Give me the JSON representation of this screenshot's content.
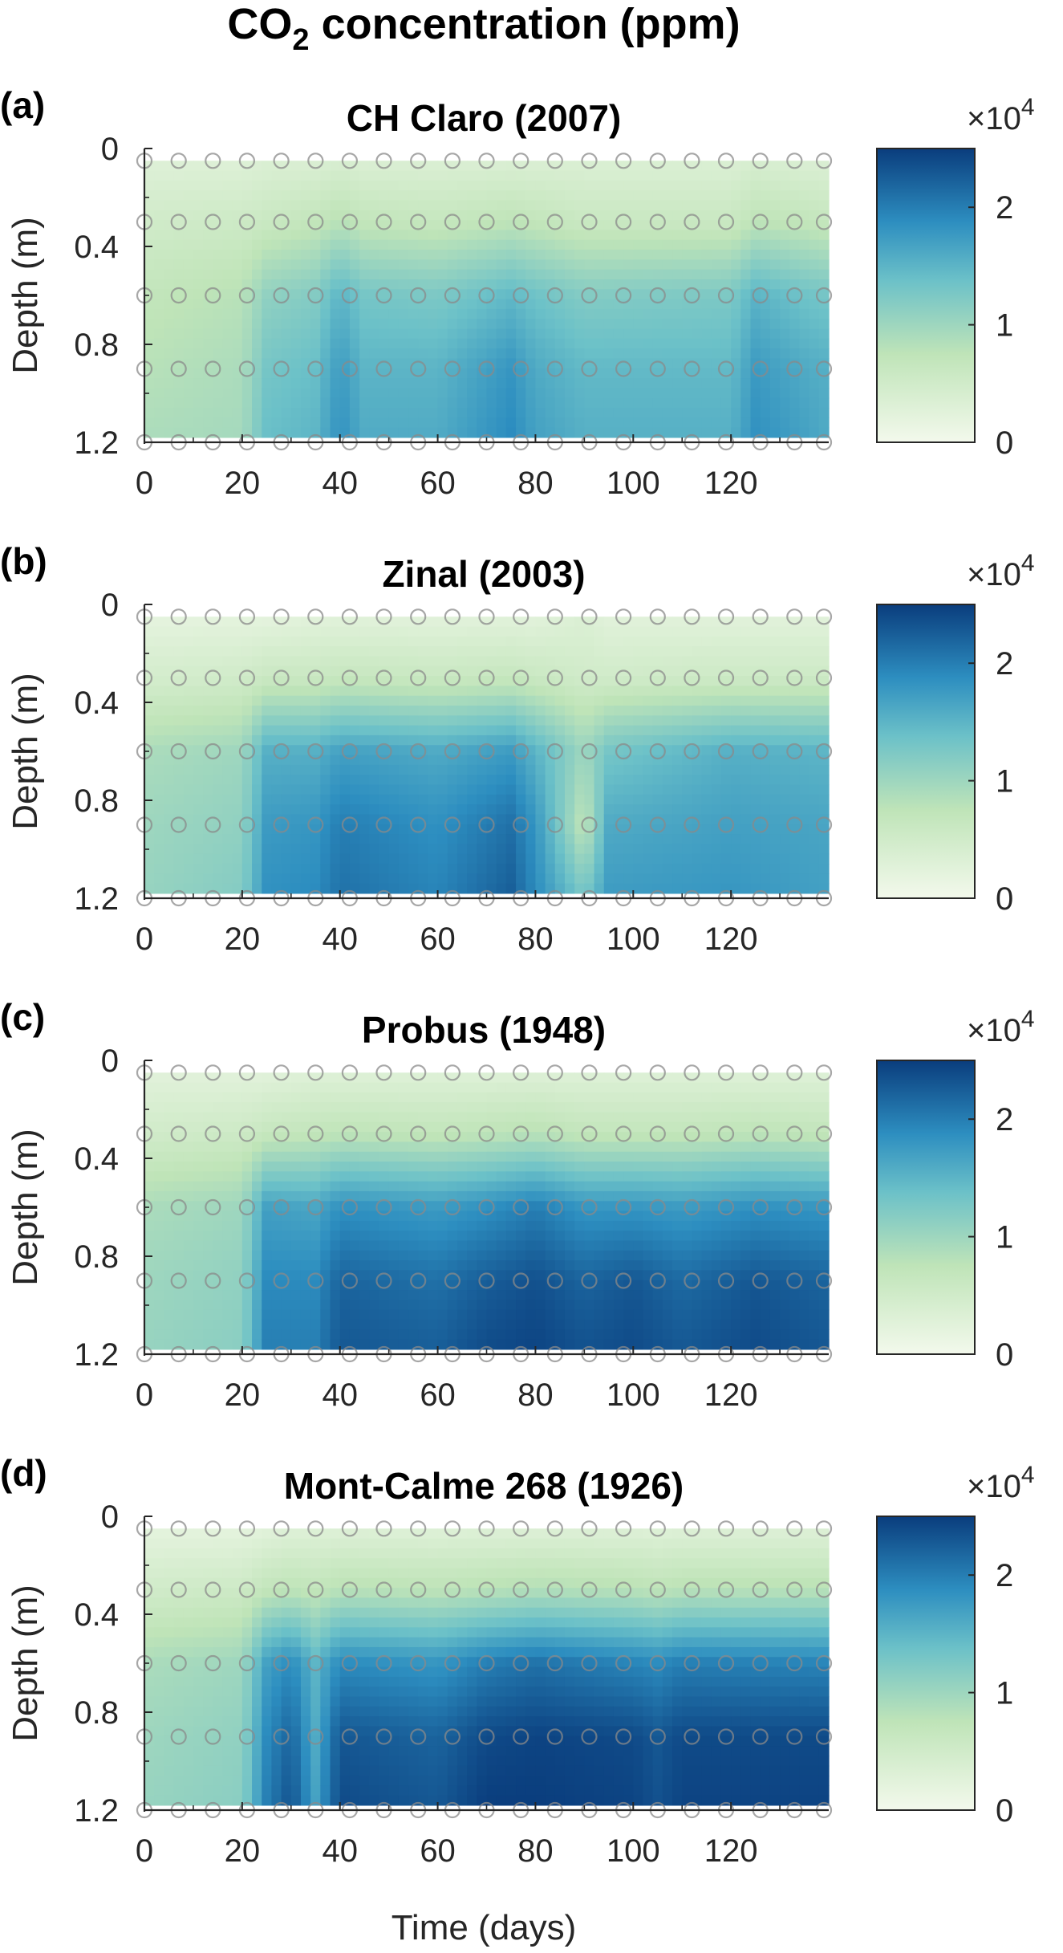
{
  "figure": {
    "title_main": "CO",
    "title_sub": "2",
    "title_rest": " concentration (ppm)",
    "x_label": "Time (days)",
    "y_label": "Depth (m)",
    "colorbar_multiplier_base": "×10",
    "colorbar_multiplier_exp": "4",
    "colors": {
      "low": "#f3f9ec",
      "mid_low": "#bfe4b8",
      "mid": "#6cc1c8",
      "mid_high": "#2d8ec0",
      "high": "#0a3d7d",
      "marker": "#8a8a8a"
    }
  },
  "chart_data": [
    {
      "type": "heatmap",
      "panel_label": "(a)",
      "title": "CH Claro (2007)",
      "xlabel": "",
      "ylabel": "Depth (m)",
      "xlim": [
        0,
        140
      ],
      "ylim": [
        0,
        1.2
      ],
      "x_ticks": [
        "0",
        "20",
        "40",
        "60",
        "80",
        "100",
        "120"
      ],
      "y_ticks": [
        "0",
        "0.4",
        "0.8",
        "1.2"
      ],
      "colorbar_ticks": [
        "0",
        "1",
        "2"
      ],
      "colorbar_range": [
        0,
        2.5
      ],
      "sensor_depths": [
        0.05,
        0.3,
        0.6,
        0.9,
        1.2
      ],
      "sensor_times": [
        0,
        7,
        14,
        21,
        28,
        35,
        42,
        49,
        56,
        63,
        70,
        77,
        84,
        91,
        98,
        105,
        112,
        119,
        126,
        133,
        140
      ],
      "times": [
        0,
        20,
        25,
        35,
        40,
        45,
        60,
        75,
        80,
        90,
        120,
        125,
        135,
        140
      ],
      "depths": [
        0.05,
        0.3,
        0.6,
        0.9,
        1.2
      ],
      "values": [
        [
          0.3,
          0.3,
          0.35,
          0.35,
          0.4,
          0.35,
          0.35,
          0.35,
          0.35,
          0.35,
          0.35,
          0.4,
          0.35,
          0.35
        ],
        [
          0.5,
          0.55,
          0.6,
          0.7,
          0.8,
          0.7,
          0.65,
          0.75,
          0.7,
          0.6,
          0.6,
          0.75,
          0.7,
          0.65
        ],
        [
          0.7,
          0.8,
          1.1,
          1.2,
          1.5,
          1.3,
          1.25,
          1.45,
          1.35,
          1.2,
          1.25,
          1.5,
          1.35,
          1.3
        ],
        [
          0.8,
          0.9,
          1.3,
          1.4,
          1.75,
          1.5,
          1.5,
          1.8,
          1.6,
          1.45,
          1.45,
          1.75,
          1.6,
          1.55
        ],
        [
          0.9,
          0.95,
          1.4,
          1.5,
          1.85,
          1.6,
          1.6,
          1.9,
          1.7,
          1.55,
          1.55,
          1.85,
          1.7,
          1.6
        ]
      ]
    },
    {
      "type": "heatmap",
      "panel_label": "(b)",
      "title": "Zinal (2003)",
      "xlabel": "",
      "ylabel": "Depth (m)",
      "xlim": [
        0,
        140
      ],
      "ylim": [
        0,
        1.2
      ],
      "x_ticks": [
        "0",
        "20",
        "40",
        "60",
        "80",
        "100",
        "120"
      ],
      "y_ticks": [
        "0",
        "0.4",
        "0.8",
        "1.2"
      ],
      "colorbar_ticks": [
        "0",
        "1",
        "2"
      ],
      "colorbar_range": [
        0,
        2.5
      ],
      "sensor_depths": [
        0.05,
        0.3,
        0.6,
        0.9,
        1.2
      ],
      "sensor_times": [
        0,
        7,
        14,
        21,
        28,
        35,
        42,
        49,
        56,
        63,
        70,
        77,
        84,
        91,
        98,
        105,
        112,
        119,
        126,
        133,
        140
      ],
      "times": [
        0,
        20,
        25,
        35,
        40,
        60,
        75,
        80,
        90,
        95,
        120,
        140
      ],
      "depths": [
        0.05,
        0.3,
        0.6,
        0.9,
        1.2
      ],
      "values": [
        [
          0.2,
          0.2,
          0.2,
          0.25,
          0.25,
          0.25,
          0.25,
          0.25,
          0.35,
          0.25,
          0.25,
          0.25
        ],
        [
          0.45,
          0.5,
          0.6,
          0.6,
          0.65,
          0.6,
          0.65,
          0.6,
          0.5,
          0.5,
          0.55,
          0.55
        ],
        [
          0.9,
          1.0,
          1.55,
          1.55,
          1.7,
          1.6,
          1.75,
          1.5,
          1.0,
          1.3,
          1.55,
          1.5
        ],
        [
          1.0,
          1.1,
          1.75,
          1.8,
          2.0,
          1.85,
          2.1,
          1.8,
          0.7,
          1.6,
          1.7,
          1.65
        ],
        [
          1.05,
          1.2,
          1.85,
          1.9,
          2.1,
          1.95,
          2.25,
          1.9,
          1.3,
          1.75,
          1.8,
          1.7
        ]
      ]
    },
    {
      "type": "heatmap",
      "panel_label": "(c)",
      "title": "Probus (1948)",
      "xlabel": "",
      "ylabel": "Depth (m)",
      "xlim": [
        0,
        140
      ],
      "ylim": [
        0,
        1.2
      ],
      "x_ticks": [
        "0",
        "20",
        "40",
        "60",
        "80",
        "100",
        "120"
      ],
      "y_ticks": [
        "0",
        "0.4",
        "0.8",
        "1.2"
      ],
      "colorbar_ticks": [
        "0",
        "1",
        "2"
      ],
      "colorbar_range": [
        0,
        2.5
      ],
      "sensor_depths": [
        0.05,
        0.3,
        0.6,
        0.9,
        1.2
      ],
      "sensor_times": [
        0,
        7,
        14,
        21,
        28,
        35,
        42,
        49,
        56,
        63,
        70,
        77,
        84,
        91,
        98,
        105,
        112,
        119,
        126,
        133,
        140
      ],
      "times": [
        0,
        20,
        25,
        35,
        40,
        60,
        70,
        80,
        90,
        100,
        110,
        125,
        140
      ],
      "depths": [
        0.05,
        0.3,
        0.6,
        0.9,
        1.2
      ],
      "values": [
        [
          0.25,
          0.25,
          0.25,
          0.3,
          0.3,
          0.3,
          0.3,
          0.3,
          0.3,
          0.3,
          0.3,
          0.3,
          0.3
        ],
        [
          0.5,
          0.55,
          0.65,
          0.7,
          0.75,
          0.7,
          0.75,
          0.8,
          0.7,
          0.7,
          0.7,
          0.75,
          0.7
        ],
        [
          0.9,
          1.0,
          1.7,
          1.65,
          1.85,
          1.75,
          1.85,
          2.0,
          1.8,
          1.8,
          1.75,
          1.85,
          1.8
        ],
        [
          1.0,
          1.1,
          1.9,
          1.9,
          2.2,
          2.1,
          2.25,
          2.35,
          2.2,
          2.3,
          2.15,
          2.3,
          2.2
        ],
        [
          1.05,
          1.15,
          2.0,
          2.0,
          2.3,
          2.25,
          2.4,
          2.45,
          2.35,
          2.4,
          2.3,
          2.4,
          2.3
        ]
      ]
    },
    {
      "type": "heatmap",
      "panel_label": "(d)",
      "title": "Mont-Calme 268 (1926)",
      "xlabel": "Time (days)",
      "ylabel": "Depth (m)",
      "xlim": [
        0,
        140
      ],
      "ylim": [
        0,
        1.2
      ],
      "x_ticks": [
        "0",
        "20",
        "40",
        "60",
        "80",
        "100",
        "120"
      ],
      "y_ticks": [
        "0",
        "0.4",
        "0.8",
        "1.2"
      ],
      "colorbar_ticks": [
        "0",
        "1",
        "2"
      ],
      "colorbar_range": [
        0,
        2.5
      ],
      "sensor_depths": [
        0.05,
        0.3,
        0.6,
        0.9,
        1.2
      ],
      "sensor_times": [
        0,
        7,
        14,
        21,
        28,
        35,
        42,
        49,
        56,
        63,
        70,
        77,
        84,
        91,
        98,
        105,
        112,
        119,
        126,
        133,
        140
      ],
      "times": [
        0,
        20,
        25,
        30,
        35,
        40,
        60,
        70,
        80,
        100,
        105,
        110,
        140
      ],
      "depths": [
        0.05,
        0.3,
        0.6,
        0.9,
        1.2
      ],
      "values": [
        [
          0.2,
          0.2,
          0.25,
          0.3,
          0.3,
          0.3,
          0.3,
          0.3,
          0.3,
          0.3,
          0.3,
          0.3,
          0.3
        ],
        [
          0.5,
          0.55,
          0.7,
          0.75,
          0.7,
          0.8,
          0.75,
          0.8,
          0.85,
          0.8,
          0.75,
          0.8,
          0.8
        ],
        [
          0.9,
          1.0,
          1.7,
          1.9,
          1.5,
          1.9,
          1.8,
          2.0,
          2.1,
          1.95,
          1.9,
          2.0,
          1.95
        ],
        [
          1.0,
          1.1,
          1.9,
          2.2,
          1.6,
          2.3,
          2.2,
          2.4,
          2.45,
          2.4,
          2.3,
          2.4,
          2.4
        ],
        [
          1.05,
          1.15,
          2.0,
          2.35,
          1.7,
          2.4,
          2.3,
          2.5,
          2.5,
          2.45,
          2.35,
          2.45,
          2.45
        ]
      ]
    }
  ]
}
